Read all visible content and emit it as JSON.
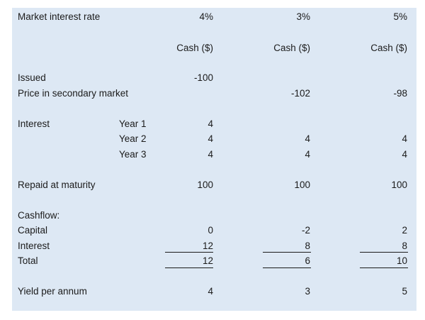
{
  "header": {
    "label": "Market interest rate",
    "rates": [
      "4%",
      "3%",
      "5%"
    ],
    "cash_headers": [
      "Cash ($)",
      "Cash ($)",
      "Cash ($)"
    ]
  },
  "issued": {
    "label": "Issued",
    "values": [
      "-100",
      "",
      ""
    ]
  },
  "secondary": {
    "label": "Price in secondary market",
    "values": [
      "",
      "-102",
      "-98"
    ]
  },
  "interest": {
    "label": "Interest",
    "years": [
      {
        "label": "Year 1",
        "values": [
          "4",
          "",
          ""
        ]
      },
      {
        "label": "Year 2",
        "values": [
          "4",
          "4",
          "4"
        ]
      },
      {
        "label": "Year 3",
        "values": [
          "4",
          "4",
          "4"
        ]
      }
    ]
  },
  "repaid": {
    "label": "Repaid at maturity",
    "values": [
      "100",
      "100",
      "100"
    ]
  },
  "cashflow": {
    "label": "Cashflow:",
    "capital": {
      "label": "Capital",
      "values": [
        "0",
        "-2",
        "2"
      ]
    },
    "interest": {
      "label": "Interest",
      "values": [
        "12",
        "8",
        "8"
      ]
    },
    "total": {
      "label": "Total",
      "values": [
        "12",
        "6",
        "10"
      ]
    }
  },
  "yield": {
    "label": "Yield per annum",
    "values": [
      "4",
      "3",
      "5"
    ]
  }
}
